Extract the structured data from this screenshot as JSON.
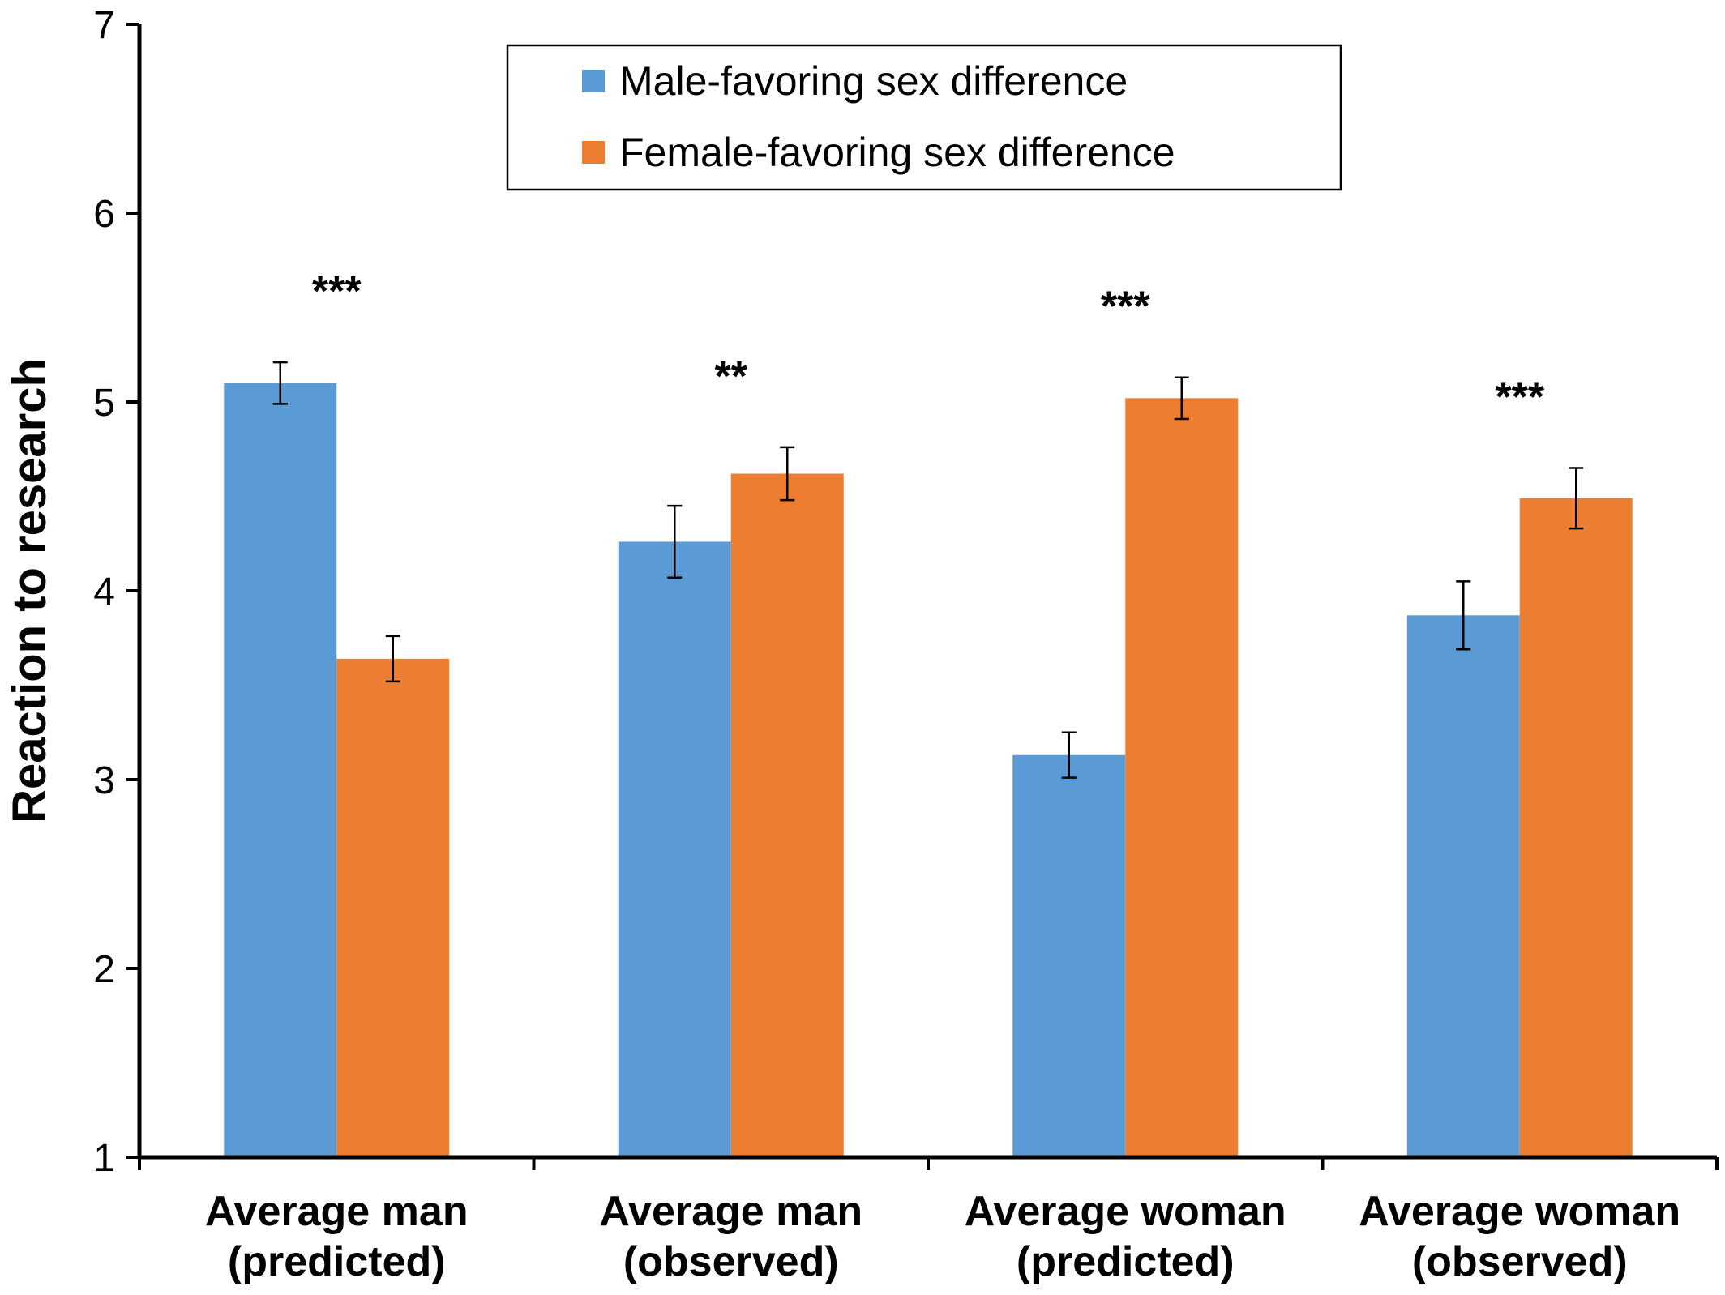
{
  "chart_data": {
    "type": "bar",
    "title": "",
    "xlabel": "",
    "ylabel": "Reaction to research",
    "ylim": [
      1,
      7
    ],
    "yticks": [
      1,
      2,
      3,
      4,
      5,
      6,
      7
    ],
    "grid": false,
    "legend_position": "top-center",
    "categories": [
      [
        "Average man",
        "(predicted)"
      ],
      [
        "Average man",
        "(observed)"
      ],
      [
        "Average woman",
        "(predicted)"
      ],
      [
        "Average woman",
        "(observed)"
      ]
    ],
    "series": [
      {
        "name": "Male-favoring sex difference",
        "color": "#5B9BD5",
        "values": [
          5.1,
          4.26,
          3.13,
          3.87
        ],
        "errors": [
          0.11,
          0.19,
          0.12,
          0.18
        ]
      },
      {
        "name": "Female-favoring sex difference",
        "color": "#ED7D31",
        "values": [
          3.64,
          4.62,
          5.02,
          4.49
        ],
        "errors": [
          0.12,
          0.14,
          0.11,
          0.16
        ]
      }
    ],
    "annotations": [
      "***",
      "**",
      "***",
      "***"
    ]
  }
}
